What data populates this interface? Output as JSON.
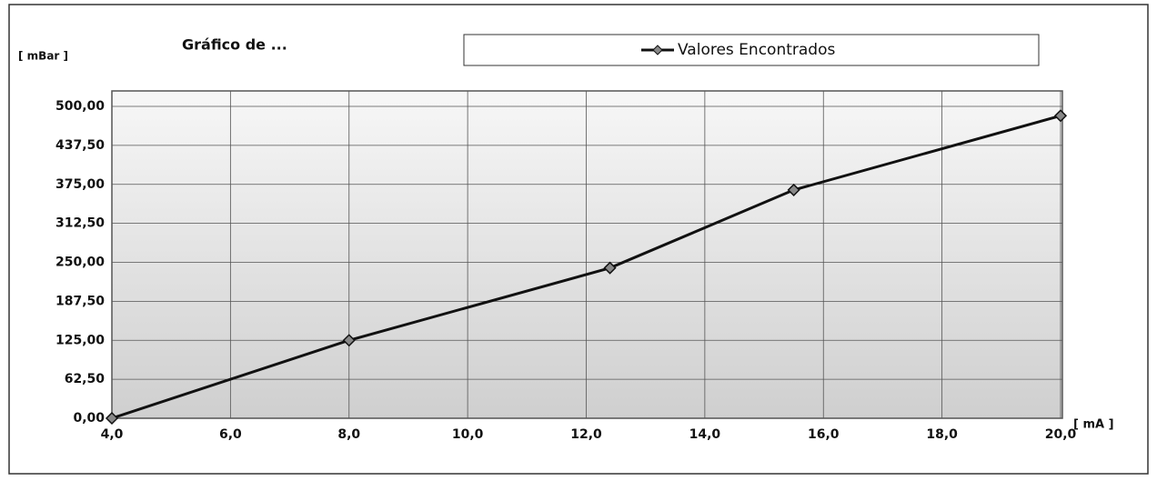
{
  "chart_data": {
    "type": "line",
    "title": "Gráfico de ...",
    "y_label": "[ mBar ]",
    "x_label": "[ mA ]",
    "x": [
      4,
      8,
      12.4,
      15.5,
      20
    ],
    "series": [
      {
        "name": "Valores Encontrados",
        "color": "#111111",
        "values": [
          0,
          125,
          241,
          366,
          485
        ]
      }
    ],
    "xlim": [
      4,
      20
    ],
    "xticks": [
      {
        "value": 4,
        "label": "4,0"
      },
      {
        "value": 6,
        "label": "6,0"
      },
      {
        "value": 8,
        "label": "8,0"
      },
      {
        "value": 10,
        "label": "10,0"
      },
      {
        "value": 12,
        "label": "12,0"
      },
      {
        "value": 14,
        "label": "14,0"
      },
      {
        "value": 16,
        "label": "16,0"
      },
      {
        "value": 18,
        "label": "18,0"
      },
      {
        "value": 20,
        "label": "20,0"
      }
    ],
    "ylim": [
      0,
      500
    ],
    "yticks": [
      {
        "value": 0,
        "label": "0,00"
      },
      {
        "value": 62.5,
        "label": "62,50"
      },
      {
        "value": 125,
        "label": "125,00"
      },
      {
        "value": 187.5,
        "label": "187,50"
      },
      {
        "value": 250,
        "label": "250,00"
      },
      {
        "value": 312.5,
        "label": "312,50"
      },
      {
        "value": 375,
        "label": "375,00"
      },
      {
        "value": 437.5,
        "label": "437,50"
      },
      {
        "value": 500,
        "label": "500,00"
      }
    ],
    "grid": true,
    "legend": "top"
  }
}
